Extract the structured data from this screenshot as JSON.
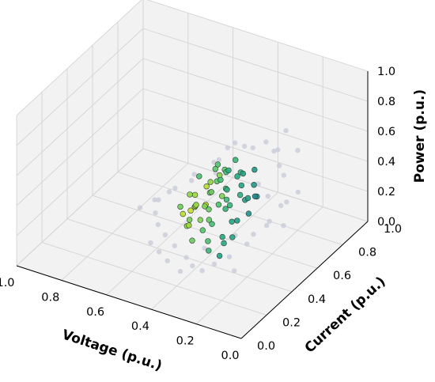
{
  "chart_data": {
    "type": "scatter",
    "projection": "3d",
    "title": "",
    "xlabel": "Voltage (p.u.)",
    "ylabel": "Current (p.u.)",
    "zlabel": "Power (p.u.)",
    "xlim": [
      0.0,
      1.0
    ],
    "ylim": [
      0.0,
      1.0
    ],
    "zlim": [
      0.0,
      1.0
    ],
    "x_ticks": [
      "0.0",
      "0.2",
      "0.4",
      "0.6",
      "0.8",
      "1.0"
    ],
    "y_ticks": [
      "0.0",
      "0.2",
      "0.4",
      "0.6",
      "0.8",
      "1.0"
    ],
    "z_ticks": [
      "0.0",
      "0.2",
      "0.4",
      "0.6",
      "0.8",
      "1.0"
    ],
    "grid": true,
    "colormap": "viridis",
    "colors": {
      "pane": "#f2f2f2",
      "grid": "#d4d4d4",
      "faint_point": "#c6c9d8",
      "edge": "#2b3d33"
    },
    "points": [
      {
        "x": 0.35,
        "y": 0.59,
        "z": 0.45,
        "c": 0.6
      },
      {
        "x": 0.4,
        "y": 0.61,
        "z": 0.45,
        "c": 0.62
      },
      {
        "x": 0.32,
        "y": 0.57,
        "z": 0.42,
        "c": 0.58
      },
      {
        "x": 0.28,
        "y": 0.55,
        "z": 0.37,
        "c": 0.55
      },
      {
        "x": 0.31,
        "y": 0.58,
        "z": 0.32,
        "c": 0.56
      },
      {
        "x": 0.36,
        "y": 0.63,
        "z": 0.29,
        "c": 0.63
      },
      {
        "x": 0.42,
        "y": 0.63,
        "z": 0.23,
        "c": 0.68
      },
      {
        "x": 0.4,
        "y": 0.62,
        "z": 0.21,
        "c": 0.66
      },
      {
        "x": 0.45,
        "y": 0.62,
        "z": 0.19,
        "c": 0.72
      },
      {
        "x": 0.5,
        "y": 0.64,
        "z": 0.23,
        "c": 0.78
      },
      {
        "x": 0.48,
        "y": 0.66,
        "z": 0.3,
        "c": 0.74
      },
      {
        "x": 0.45,
        "y": 0.68,
        "z": 0.36,
        "c": 0.69
      },
      {
        "x": 0.49,
        "y": 0.74,
        "z": 0.31,
        "c": 0.76
      },
      {
        "x": 0.53,
        "y": 0.77,
        "z": 0.23,
        "c": 0.82
      },
      {
        "x": 0.5,
        "y": 0.6,
        "z": 0.17,
        "c": 0.8
      },
      {
        "x": 0.55,
        "y": 0.62,
        "z": 0.14,
        "c": 0.84
      },
      {
        "x": 0.57,
        "y": 0.65,
        "z": 0.1,
        "c": 0.87
      },
      {
        "x": 0.47,
        "y": 0.58,
        "z": 0.11,
        "c": 0.75
      },
      {
        "x": 0.52,
        "y": 0.6,
        "z": 0.07,
        "c": 0.81
      },
      {
        "x": 0.59,
        "y": 0.68,
        "z": 0.06,
        "c": 0.88
      },
      {
        "x": 0.47,
        "y": 0.53,
        "z": 0.08,
        "c": 0.73
      },
      {
        "x": 0.44,
        "y": 0.55,
        "z": 0.12,
        "c": 0.7
      },
      {
        "x": 0.43,
        "y": 0.5,
        "z": 0.05,
        "c": 0.71
      },
      {
        "x": 0.56,
        "y": 0.58,
        "z": 0.03,
        "c": 0.86
      },
      {
        "x": 0.62,
        "y": 0.64,
        "z": 0.03,
        "c": 0.9
      },
      {
        "x": 0.58,
        "y": 0.63,
        "z": 0.08,
        "c": 0.92
      },
      {
        "x": 0.6,
        "y": 0.7,
        "z": 0.12,
        "c": 0.85
      },
      {
        "x": 0.38,
        "y": 0.55,
        "z": 0.25,
        "c": 0.64
      },
      {
        "x": 0.34,
        "y": 0.53,
        "z": 0.2,
        "c": 0.59
      },
      {
        "x": 0.36,
        "y": 0.49,
        "z": 0.12,
        "c": 0.61
      },
      {
        "x": 0.3,
        "y": 0.5,
        "z": 0.25,
        "c": 0.54
      },
      {
        "x": 0.26,
        "y": 0.52,
        "z": 0.3,
        "c": 0.5
      },
      {
        "x": 0.24,
        "y": 0.55,
        "z": 0.4,
        "c": 0.48
      },
      {
        "x": 0.22,
        "y": 0.5,
        "z": 0.45,
        "c": 0.46
      },
      {
        "x": 0.38,
        "y": 0.67,
        "z": 0.4,
        "c": 0.65
      },
      {
        "x": 0.42,
        "y": 0.7,
        "z": 0.44,
        "c": 0.67
      },
      {
        "x": 0.46,
        "y": 0.58,
        "z": 0.3,
        "c": 0.77
      },
      {
        "x": 0.52,
        "y": 0.68,
        "z": 0.26,
        "c": 0.83
      },
      {
        "x": 0.56,
        "y": 0.72,
        "z": 0.18,
        "c": 0.89
      },
      {
        "x": 0.54,
        "y": 0.55,
        "z": 0.1,
        "c": 0.79
      },
      {
        "x": 0.5,
        "y": 0.5,
        "z": 0.02,
        "c": 0.77
      },
      {
        "x": 0.64,
        "y": 0.73,
        "z": 0.08,
        "c": 0.83
      },
      {
        "x": 0.66,
        "y": 0.69,
        "z": 0.02,
        "c": 0.78
      },
      {
        "x": 0.41,
        "y": 0.47,
        "z": 0.02,
        "c": 0.66
      },
      {
        "x": 0.39,
        "y": 0.58,
        "z": 0.35,
        "c": 0.62
      },
      {
        "x": 0.43,
        "y": 0.6,
        "z": 0.38,
        "c": 0.7
      },
      {
        "x": 0.47,
        "y": 0.63,
        "z": 0.41,
        "c": 0.74
      },
      {
        "x": 0.33,
        "y": 0.6,
        "z": 0.47,
        "c": 0.57
      },
      {
        "x": 0.29,
        "y": 0.62,
        "z": 0.5,
        "c": 0.52
      },
      {
        "x": 0.37,
        "y": 0.52,
        "z": 0.05,
        "c": 0.6
      },
      {
        "x": 0.48,
        "y": 0.7,
        "z": 0.17,
        "c": 0.8
      },
      {
        "x": 0.51,
        "y": 0.72,
        "z": 0.35,
        "c": 0.72
      },
      {
        "x": 0.44,
        "y": 0.66,
        "z": 0.27,
        "c": 0.68
      },
      {
        "x": 0.53,
        "y": 0.66,
        "z": 0.12,
        "c": 0.91
      },
      {
        "x": 0.46,
        "y": 0.56,
        "z": 0.2,
        "c": 0.76
      },
      {
        "x": 0.61,
        "y": 0.75,
        "z": 0.2,
        "c": 0.71
      },
      {
        "x": 0.35,
        "y": 0.45,
        "z": 0.03,
        "c": 0.58
      },
      {
        "x": 0.58,
        "y": 0.6,
        "z": 0.0,
        "c": 0.82
      },
      {
        "x": 0.31,
        "y": 0.48,
        "z": 0.15,
        "c": 0.57
      },
      {
        "x": 0.27,
        "y": 0.58,
        "z": 0.44,
        "c": 0.53
      },
      {
        "x": 0.2,
        "y": 0.49,
        "z": 0.55,
        "c": 0.18
      },
      {
        "x": 0.14,
        "y": 0.46,
        "z": 0.52,
        "c": 0.15
      },
      {
        "x": 0.12,
        "y": 0.55,
        "z": 0.6,
        "c": 0.12
      },
      {
        "x": 0.18,
        "y": 0.62,
        "z": 0.58,
        "c": 0.2
      },
      {
        "x": 0.1,
        "y": 0.4,
        "z": 0.42,
        "c": 0.15
      },
      {
        "x": 0.16,
        "y": 0.38,
        "z": 0.32,
        "c": 0.18
      },
      {
        "x": 0.08,
        "y": 0.5,
        "z": 0.48,
        "c": 0.12
      },
      {
        "x": 0.22,
        "y": 0.68,
        "z": 0.62,
        "c": 0.22
      },
      {
        "x": 0.26,
        "y": 0.72,
        "z": 0.56,
        "c": 0.25
      },
      {
        "x": 0.15,
        "y": 0.58,
        "z": 0.36,
        "c": 0.16
      },
      {
        "x": 0.2,
        "y": 0.4,
        "z": 0.22,
        "c": 0.18
      },
      {
        "x": 0.25,
        "y": 0.35,
        "z": 0.15,
        "c": 0.2
      },
      {
        "x": 0.3,
        "y": 0.32,
        "z": 0.1,
        "c": 0.22
      },
      {
        "x": 0.36,
        "y": 0.33,
        "z": 0.02,
        "c": 0.25
      },
      {
        "x": 0.42,
        "y": 0.36,
        "z": 0.0,
        "c": 0.25
      },
      {
        "x": 0.47,
        "y": 0.4,
        "z": 0.0,
        "c": 0.28
      },
      {
        "x": 0.55,
        "y": 0.45,
        "z": 0.0,
        "c": 0.28
      },
      {
        "x": 0.62,
        "y": 0.5,
        "z": 0.0,
        "c": 0.3
      },
      {
        "x": 0.68,
        "y": 0.55,
        "z": 0.0,
        "c": 0.3
      },
      {
        "x": 0.72,
        "y": 0.6,
        "z": 0.02,
        "c": 0.28
      },
      {
        "x": 0.74,
        "y": 0.66,
        "z": 0.05,
        "c": 0.25
      },
      {
        "x": 0.7,
        "y": 0.72,
        "z": 0.1,
        "c": 0.25
      },
      {
        "x": 0.66,
        "y": 0.8,
        "z": 0.15,
        "c": 0.22
      },
      {
        "x": 0.6,
        "y": 0.85,
        "z": 0.22,
        "c": 0.2
      },
      {
        "x": 0.55,
        "y": 0.8,
        "z": 0.3,
        "c": 0.22
      },
      {
        "x": 0.5,
        "y": 0.78,
        "z": 0.42,
        "c": 0.2
      },
      {
        "x": 0.45,
        "y": 0.75,
        "z": 0.5,
        "c": 0.22
      },
      {
        "x": 0.38,
        "y": 0.7,
        "z": 0.55,
        "c": 0.2
      },
      {
        "x": 0.32,
        "y": 0.66,
        "z": 0.6,
        "c": 0.18
      },
      {
        "x": 0.28,
        "y": 0.45,
        "z": 0.2,
        "c": 0.25
      },
      {
        "x": 0.78,
        "y": 0.7,
        "z": 0.0,
        "c": 0.22
      },
      {
        "x": 0.8,
        "y": 0.62,
        "z": 0.0,
        "c": 0.2
      },
      {
        "x": 0.64,
        "y": 0.42,
        "z": 0.0,
        "c": 0.22
      },
      {
        "x": 0.58,
        "y": 0.38,
        "z": 0.0,
        "c": 0.2
      },
      {
        "x": 0.44,
        "y": 0.3,
        "z": 0.0,
        "c": 0.2
      },
      {
        "x": 0.52,
        "y": 0.34,
        "z": 0.0,
        "c": 0.18
      },
      {
        "x": 0.7,
        "y": 0.85,
        "z": 0.05,
        "c": 0.18
      },
      {
        "x": 0.12,
        "y": 0.66,
        "z": 0.68,
        "c": 0.15
      },
      {
        "x": 0.06,
        "y": 0.44,
        "z": 0.38,
        "c": 0.12
      },
      {
        "x": 0.24,
        "y": 0.78,
        "z": 0.66,
        "c": 0.18
      },
      {
        "x": 0.2,
        "y": 0.3,
        "z": 0.12,
        "c": 0.15
      },
      {
        "x": 0.34,
        "y": 0.8,
        "z": 0.52,
        "c": 0.2
      },
      {
        "x": 0.4,
        "y": 0.42,
        "z": 0.08,
        "c": 0.3
      },
      {
        "x": 0.62,
        "y": 0.9,
        "z": 0.1,
        "c": 0.18
      },
      {
        "x": 0.76,
        "y": 0.78,
        "z": 0.0,
        "c": 0.18
      },
      {
        "x": 0.04,
        "y": 0.52,
        "z": 0.55,
        "c": 0.1
      },
      {
        "x": 0.18,
        "y": 0.52,
        "z": 0.26,
        "c": 0.22
      }
    ]
  }
}
